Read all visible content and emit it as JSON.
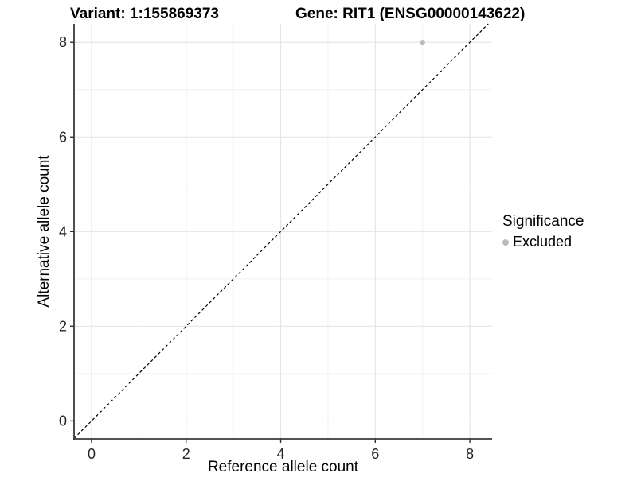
{
  "titles": {
    "variant": "Variant: 1:155869373",
    "gene": "Gene: RIT1 (ENSG00000143622)"
  },
  "colors": {
    "background": "#ffffff",
    "grid_major": "#e4e4e4",
    "grid_minor": "#f1f1f1",
    "axis_line": "#3a3a3a",
    "tick_mark": "#333333",
    "tick_text": "#262626",
    "identity_line": "#000000",
    "point": "#bcbcbc"
  },
  "chart_data": {
    "type": "scatter",
    "title_left": "Variant: 1:155869373",
    "title_right": "Gene: RIT1 (ENSG00000143622)",
    "xlabel": "Reference allele count",
    "ylabel": "Alternative allele count",
    "xlim": [
      -0.37,
      8.47
    ],
    "ylim": [
      -0.38,
      8.39
    ],
    "xticks": [
      0,
      2,
      4,
      6,
      8
    ],
    "yticks": [
      0,
      2,
      4,
      6,
      8
    ],
    "minor_xticks": [
      1,
      3,
      5,
      7
    ],
    "minor_yticks": [
      1,
      3,
      5,
      7
    ],
    "grid": "major+minor",
    "identity_line": {
      "style": "dashed",
      "color": "#000000",
      "slope": 1,
      "intercept": 0
    },
    "series": [
      {
        "name": "Excluded",
        "color": "#bcbcbc",
        "points": [
          [
            7,
            8
          ]
        ]
      }
    ],
    "legend": {
      "position": "right",
      "title": "Significance",
      "entries": [
        {
          "label": "Excluded",
          "color": "#bcbcbc"
        }
      ]
    }
  }
}
